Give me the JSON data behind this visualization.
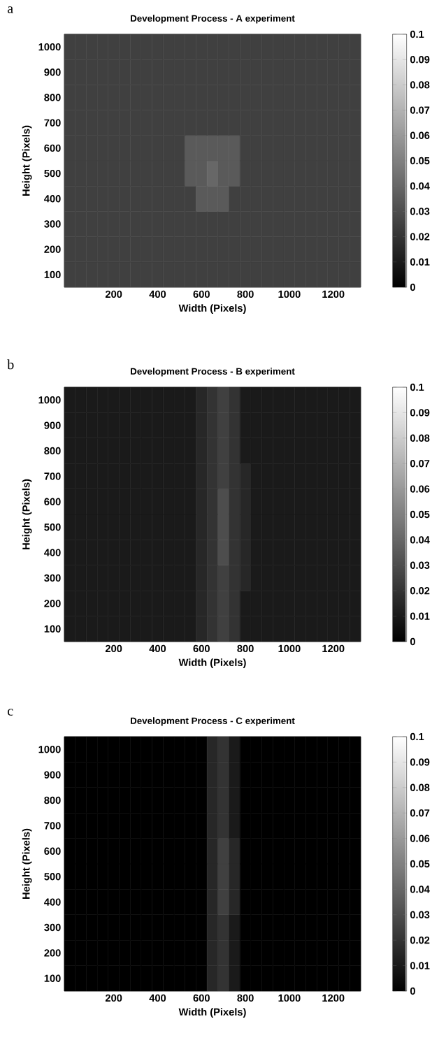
{
  "chart_data": [
    {
      "type": "heatmap",
      "title": "Development Process  - A  experiment",
      "xlabel": "Width (Pixels)",
      "ylabel": "Height (Pixels)",
      "annotations": [
        "a"
      ],
      "categories": [
        null,
        null,
        null,
        null,
        "200",
        null,
        null,
        null,
        "400",
        null,
        null,
        null,
        "600",
        null,
        null,
        null,
        "800",
        null,
        null,
        null,
        "1000",
        null,
        null,
        null,
        "1200",
        null,
        null
      ],
      "y_categories": [
        "1000",
        "900",
        "800",
        "700",
        "600",
        "500",
        "400",
        "300",
        "200",
        "100"
      ],
      "clim": [
        0,
        0.1
      ],
      "cticks": [
        0,
        0.01,
        0.02,
        0.03,
        0.04,
        0.05,
        0.06,
        0.07,
        0.08,
        0.09,
        0.1
      ],
      "cells": [
        [
          0.025,
          0.025,
          0.025,
          0.025,
          0.025,
          0.025,
          0.025,
          0.025,
          0.025,
          0.025,
          0.025,
          0.025,
          0.025,
          0.025,
          0.025,
          0.025,
          0.025,
          0.025,
          0.025,
          0.025,
          0.025,
          0.025,
          0.025,
          0.025,
          0.025,
          0.025,
          0.025
        ],
        [
          0.025,
          0.025,
          0.025,
          0.025,
          0.025,
          0.025,
          0.025,
          0.025,
          0.025,
          0.025,
          0.025,
          0.025,
          0.025,
          0.025,
          0.025,
          0.025,
          0.025,
          0.025,
          0.025,
          0.025,
          0.025,
          0.025,
          0.025,
          0.025,
          0.025,
          0.025,
          0.025
        ],
        [
          0.025,
          0.025,
          0.025,
          0.025,
          0.025,
          0.025,
          0.025,
          0.025,
          0.025,
          0.025,
          0.025,
          0.025,
          0.025,
          0.025,
          0.025,
          0.025,
          0.025,
          0.025,
          0.025,
          0.025,
          0.025,
          0.025,
          0.025,
          0.025,
          0.025,
          0.025,
          0.025
        ],
        [
          0.025,
          0.025,
          0.025,
          0.025,
          0.025,
          0.025,
          0.025,
          0.025,
          0.025,
          0.025,
          0.025,
          0.025,
          0.025,
          0.025,
          0.025,
          0.025,
          0.025,
          0.025,
          0.025,
          0.025,
          0.025,
          0.025,
          0.025,
          0.025,
          0.025,
          0.025,
          0.025
        ],
        [
          0.025,
          0.025,
          0.025,
          0.025,
          0.025,
          0.025,
          0.025,
          0.025,
          0.025,
          0.025,
          0.025,
          0.035,
          0.035,
          0.035,
          0.035,
          0.035,
          0.025,
          0.025,
          0.025,
          0.025,
          0.025,
          0.025,
          0.025,
          0.025,
          0.025,
          0.025,
          0.025
        ],
        [
          0.025,
          0.025,
          0.025,
          0.025,
          0.025,
          0.025,
          0.025,
          0.025,
          0.025,
          0.025,
          0.025,
          0.035,
          0.035,
          0.04,
          0.035,
          0.035,
          0.025,
          0.025,
          0.025,
          0.025,
          0.025,
          0.025,
          0.025,
          0.025,
          0.025,
          0.025,
          0.025
        ],
        [
          0.025,
          0.025,
          0.025,
          0.025,
          0.025,
          0.025,
          0.025,
          0.025,
          0.025,
          0.025,
          0.025,
          0.025,
          0.035,
          0.035,
          0.035,
          0.025,
          0.025,
          0.025,
          0.025,
          0.025,
          0.025,
          0.025,
          0.025,
          0.025,
          0.025,
          0.025,
          0.025
        ],
        [
          0.025,
          0.025,
          0.025,
          0.025,
          0.025,
          0.025,
          0.025,
          0.025,
          0.025,
          0.025,
          0.025,
          0.025,
          0.025,
          0.025,
          0.025,
          0.025,
          0.025,
          0.025,
          0.025,
          0.025,
          0.025,
          0.025,
          0.025,
          0.025,
          0.025,
          0.025,
          0.025
        ],
        [
          0.025,
          0.025,
          0.025,
          0.025,
          0.025,
          0.025,
          0.025,
          0.025,
          0.025,
          0.025,
          0.025,
          0.025,
          0.025,
          0.025,
          0.025,
          0.025,
          0.025,
          0.025,
          0.025,
          0.025,
          0.025,
          0.025,
          0.025,
          0.025,
          0.025,
          0.025,
          0.025
        ],
        [
          0.025,
          0.025,
          0.025,
          0.025,
          0.025,
          0.025,
          0.025,
          0.025,
          0.025,
          0.025,
          0.025,
          0.025,
          0.025,
          0.025,
          0.025,
          0.025,
          0.025,
          0.025,
          0.025,
          0.025,
          0.025,
          0.025,
          0.025,
          0.025,
          0.025,
          0.025,
          0.025
        ]
      ]
    },
    {
      "type": "heatmap",
      "title": "Development Process  - B  experiment",
      "xlabel": "Width (Pixels)",
      "ylabel": "Height (Pixels)",
      "annotations": [
        "b"
      ],
      "categories": [
        null,
        null,
        null,
        null,
        "200",
        null,
        null,
        null,
        "400",
        null,
        null,
        null,
        "600",
        null,
        null,
        null,
        "800",
        null,
        null,
        null,
        "1000",
        null,
        null,
        null,
        "1200",
        null,
        null
      ],
      "y_categories": [
        "1000",
        "900",
        "800",
        "700",
        "600",
        "500",
        "400",
        "300",
        "200",
        "100"
      ],
      "clim": [
        0,
        0.1
      ],
      "cticks": [
        0,
        0.01,
        0.02,
        0.03,
        0.04,
        0.05,
        0.06,
        0.07,
        0.08,
        0.09,
        0.1
      ],
      "cells": [
        [
          0.01,
          0.01,
          0.01,
          0.01,
          0.01,
          0.01,
          0.01,
          0.01,
          0.01,
          0.01,
          0.01,
          0.01,
          0.015,
          0.02,
          0.025,
          0.02,
          0.01,
          0.01,
          0.01,
          0.01,
          0.01,
          0.01,
          0.01,
          0.01,
          0.01,
          0.01,
          0.01
        ],
        [
          0.01,
          0.01,
          0.01,
          0.01,
          0.01,
          0.01,
          0.01,
          0.01,
          0.01,
          0.01,
          0.01,
          0.01,
          0.015,
          0.02,
          0.025,
          0.02,
          0.01,
          0.01,
          0.01,
          0.01,
          0.01,
          0.01,
          0.01,
          0.01,
          0.01,
          0.01,
          0.01
        ],
        [
          0.01,
          0.01,
          0.01,
          0.01,
          0.01,
          0.01,
          0.01,
          0.01,
          0.01,
          0.01,
          0.01,
          0.01,
          0.015,
          0.02,
          0.025,
          0.02,
          0.01,
          0.01,
          0.01,
          0.01,
          0.01,
          0.01,
          0.01,
          0.01,
          0.01,
          0.01,
          0.01
        ],
        [
          0.01,
          0.01,
          0.01,
          0.01,
          0.01,
          0.01,
          0.01,
          0.01,
          0.01,
          0.01,
          0.01,
          0.01,
          0.015,
          0.02,
          0.025,
          0.02,
          0.015,
          0.01,
          0.01,
          0.01,
          0.01,
          0.01,
          0.01,
          0.01,
          0.01,
          0.01,
          0.01
        ],
        [
          0.01,
          0.01,
          0.01,
          0.01,
          0.01,
          0.01,
          0.01,
          0.01,
          0.01,
          0.01,
          0.01,
          0.01,
          0.015,
          0.02,
          0.03,
          0.02,
          0.015,
          0.01,
          0.01,
          0.01,
          0.01,
          0.01,
          0.01,
          0.01,
          0.01,
          0.01,
          0.01
        ],
        [
          0.01,
          0.01,
          0.01,
          0.01,
          0.01,
          0.01,
          0.01,
          0.01,
          0.01,
          0.01,
          0.01,
          0.01,
          0.015,
          0.02,
          0.03,
          0.02,
          0.015,
          0.01,
          0.01,
          0.01,
          0.01,
          0.01,
          0.01,
          0.01,
          0.01,
          0.01,
          0.01
        ],
        [
          0.01,
          0.01,
          0.01,
          0.01,
          0.01,
          0.01,
          0.01,
          0.01,
          0.01,
          0.01,
          0.01,
          0.01,
          0.015,
          0.02,
          0.03,
          0.02,
          0.015,
          0.01,
          0.01,
          0.01,
          0.01,
          0.01,
          0.01,
          0.01,
          0.01,
          0.01,
          0.01
        ],
        [
          0.01,
          0.01,
          0.01,
          0.01,
          0.01,
          0.01,
          0.01,
          0.01,
          0.01,
          0.01,
          0.01,
          0.01,
          0.015,
          0.02,
          0.025,
          0.02,
          0.015,
          0.01,
          0.01,
          0.01,
          0.01,
          0.01,
          0.01,
          0.01,
          0.01,
          0.01,
          0.01
        ],
        [
          0.01,
          0.01,
          0.01,
          0.01,
          0.01,
          0.01,
          0.01,
          0.01,
          0.01,
          0.01,
          0.01,
          0.01,
          0.015,
          0.02,
          0.025,
          0.02,
          0.01,
          0.01,
          0.01,
          0.01,
          0.01,
          0.01,
          0.01,
          0.01,
          0.01,
          0.01,
          0.01
        ],
        [
          0.01,
          0.01,
          0.01,
          0.01,
          0.01,
          0.01,
          0.01,
          0.01,
          0.01,
          0.01,
          0.01,
          0.01,
          0.015,
          0.02,
          0.025,
          0.02,
          0.01,
          0.01,
          0.01,
          0.01,
          0.01,
          0.01,
          0.01,
          0.01,
          0.01,
          0.01,
          0.01
        ]
      ]
    },
    {
      "type": "heatmap",
      "title": "Development Process  - C  experiment",
      "xlabel": "Width (Pixels)",
      "ylabel": "Height (Pixels)",
      "annotations": [
        "c"
      ],
      "categories": [
        null,
        null,
        null,
        null,
        "200",
        null,
        null,
        null,
        "400",
        null,
        null,
        null,
        "600",
        null,
        null,
        null,
        "800",
        null,
        null,
        null,
        "1000",
        null,
        null,
        null,
        "1200",
        null,
        null
      ],
      "y_categories": [
        "1000",
        "900",
        "800",
        "700",
        "600",
        "500",
        "400",
        "300",
        "200",
        "100"
      ],
      "clim": [
        0,
        0.1
      ],
      "cticks": [
        0,
        0.01,
        0.02,
        0.03,
        0.04,
        0.05,
        0.06,
        0.07,
        0.08,
        0.09,
        0.1
      ],
      "cells": [
        [
          0,
          0,
          0,
          0,
          0,
          0,
          0,
          0,
          0,
          0,
          0,
          0,
          0,
          0.015,
          0.02,
          0.01,
          0,
          0,
          0,
          0,
          0,
          0,
          0,
          0,
          0,
          0,
          0
        ],
        [
          0,
          0,
          0,
          0,
          0,
          0,
          0,
          0,
          0,
          0,
          0,
          0,
          0,
          0.015,
          0.02,
          0.01,
          0,
          0,
          0,
          0,
          0,
          0,
          0,
          0,
          0,
          0,
          0
        ],
        [
          0,
          0,
          0,
          0,
          0,
          0,
          0,
          0,
          0,
          0,
          0,
          0,
          0,
          0.015,
          0.02,
          0.01,
          0,
          0,
          0,
          0,
          0,
          0,
          0,
          0,
          0,
          0,
          0
        ],
        [
          0,
          0,
          0,
          0,
          0,
          0,
          0,
          0,
          0,
          0,
          0,
          0,
          0,
          0.015,
          0.02,
          0.01,
          0,
          0,
          0,
          0,
          0,
          0,
          0,
          0,
          0,
          0,
          0
        ],
        [
          0,
          0,
          0,
          0,
          0,
          0,
          0,
          0,
          0,
          0,
          0,
          0,
          0,
          0.015,
          0.025,
          0.015,
          0,
          0,
          0,
          0,
          0,
          0,
          0,
          0,
          0,
          0,
          0
        ],
        [
          0,
          0,
          0,
          0,
          0,
          0,
          0,
          0,
          0,
          0,
          0,
          0,
          0,
          0.015,
          0.025,
          0.015,
          0,
          0,
          0,
          0,
          0,
          0,
          0,
          0,
          0,
          0,
          0
        ],
        [
          0,
          0,
          0,
          0,
          0,
          0,
          0,
          0,
          0,
          0,
          0,
          0,
          0,
          0.015,
          0.025,
          0.015,
          0,
          0,
          0,
          0,
          0,
          0,
          0,
          0,
          0,
          0,
          0
        ],
        [
          0,
          0,
          0,
          0,
          0,
          0,
          0,
          0,
          0,
          0,
          0,
          0,
          0,
          0.015,
          0.02,
          0.01,
          0,
          0,
          0,
          0,
          0,
          0,
          0,
          0,
          0,
          0,
          0
        ],
        [
          0,
          0,
          0,
          0,
          0,
          0,
          0,
          0,
          0,
          0,
          0,
          0,
          0,
          0.015,
          0.02,
          0.01,
          0,
          0,
          0,
          0,
          0,
          0,
          0,
          0,
          0,
          0,
          0
        ],
        [
          0,
          0,
          0,
          0,
          0,
          0,
          0,
          0,
          0,
          0,
          0,
          0,
          0,
          0.015,
          0.02,
          0.01,
          0,
          0,
          0,
          0,
          0,
          0,
          0,
          0,
          0,
          0,
          0
        ]
      ]
    }
  ]
}
